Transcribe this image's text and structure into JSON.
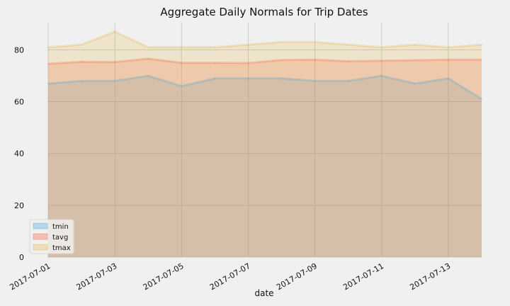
{
  "chart_data": {
    "type": "area",
    "title": "Aggregate Daily Normals for Trip Dates",
    "xlabel": "date",
    "ylabel": "",
    "x": [
      "2017-07-01",
      "2017-07-02",
      "2017-07-03",
      "2017-07-04",
      "2017-07-05",
      "2017-07-06",
      "2017-07-07",
      "2017-07-08",
      "2017-07-09",
      "2017-07-10",
      "2017-07-11",
      "2017-07-12",
      "2017-07-13",
      "2017-07-14"
    ],
    "x_tick_labels": [
      "2017-07-01",
      "2017-07-03",
      "2017-07-05",
      "2017-07-07",
      "2017-07-09",
      "2017-07-11",
      "2017-07-13"
    ],
    "y_ticks": [
      0,
      20,
      40,
      60,
      80
    ],
    "ylim": [
      0,
      90.5
    ],
    "grid": true,
    "stacked": false,
    "legend_position": "lower-left",
    "series": [
      {
        "name": "tmin",
        "color": "#30a2da",
        "values": [
          67,
          68,
          68,
          70,
          66,
          69,
          69,
          69,
          68,
          68,
          70,
          67,
          69,
          61
        ]
      },
      {
        "name": "tavg",
        "color": "#fc4f30",
        "values": [
          74.6,
          75.4,
          75.3,
          76.6,
          75.0,
          75.0,
          74.9,
          76.1,
          76.2,
          75.6,
          75.8,
          76.0,
          76.2,
          76.2
        ]
      },
      {
        "name": "tmax",
        "color": "#e5ae38",
        "values": [
          81,
          82,
          87,
          81,
          81,
          81,
          82,
          83,
          83,
          82,
          81,
          82,
          81,
          82
        ]
      }
    ]
  }
}
